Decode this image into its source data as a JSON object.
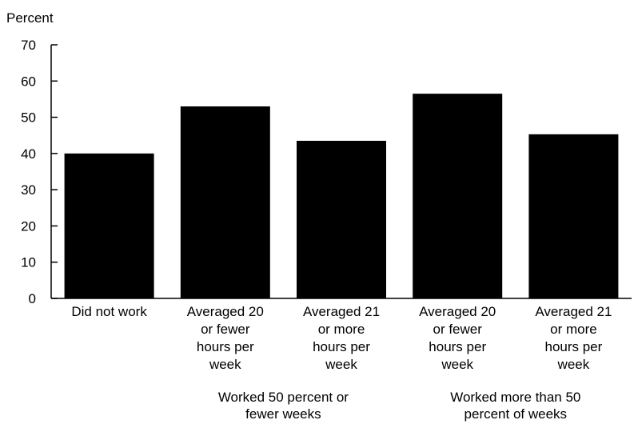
{
  "chart_data": {
    "type": "bar",
    "ylabel": "Percent",
    "ylim": [
      0,
      70
    ],
    "yticks": [
      "0",
      "10",
      "20",
      "30",
      "40",
      "50",
      "60",
      "70"
    ],
    "categories": [
      [
        "Did not work"
      ],
      [
        "Averaged 20",
        "or fewer",
        "hours per",
        "week"
      ],
      [
        "Averaged 21",
        "or more",
        "hours per",
        "week"
      ],
      [
        "Averaged 20",
        "or fewer",
        "hours per",
        "week"
      ],
      [
        "Averaged 21",
        "or more",
        "hours per",
        "week"
      ]
    ],
    "values": [
      40,
      53,
      43.5,
      56.5,
      45.3
    ],
    "groups": [
      {
        "label": [
          "Worked 50 percent or",
          "fewer weeks"
        ],
        "categories": [
          1,
          2
        ]
      },
      {
        "label": [
          "Worked more than 50",
          "percent of weeks"
        ],
        "categories": [
          3,
          4
        ]
      }
    ],
    "bar_color": "#000000",
    "grid": false
  }
}
